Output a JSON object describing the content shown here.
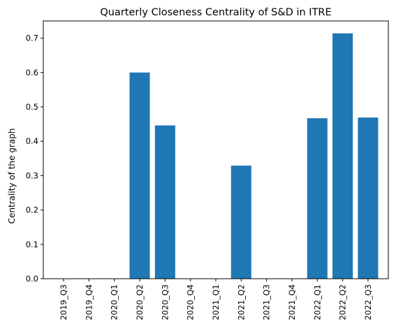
{
  "chart_data": {
    "type": "bar",
    "title": "Quarterly Closeness Centrality of S&D in ITRE",
    "xlabel": "",
    "ylabel": "Centrality of the graph",
    "categories": [
      "2019_Q3",
      "2019_Q4",
      "2020_Q1",
      "2020_Q2",
      "2020_Q3",
      "2020_Q4",
      "2021_Q1",
      "2021_Q2",
      "2021_Q3",
      "2021_Q4",
      "2022_Q1",
      "2022_Q2",
      "2022_Q3"
    ],
    "values": [
      0,
      0,
      0,
      0.6,
      0.446,
      0,
      0,
      0.329,
      0,
      0,
      0.467,
      0.714,
      0.469
    ],
    "ylim": [
      0,
      0.75
    ],
    "yticks": [
      "0.0",
      "0.1",
      "0.2",
      "0.3",
      "0.4",
      "0.5",
      "0.6",
      "0.7"
    ],
    "grid": false,
    "bar_color": "#1f77b4"
  }
}
